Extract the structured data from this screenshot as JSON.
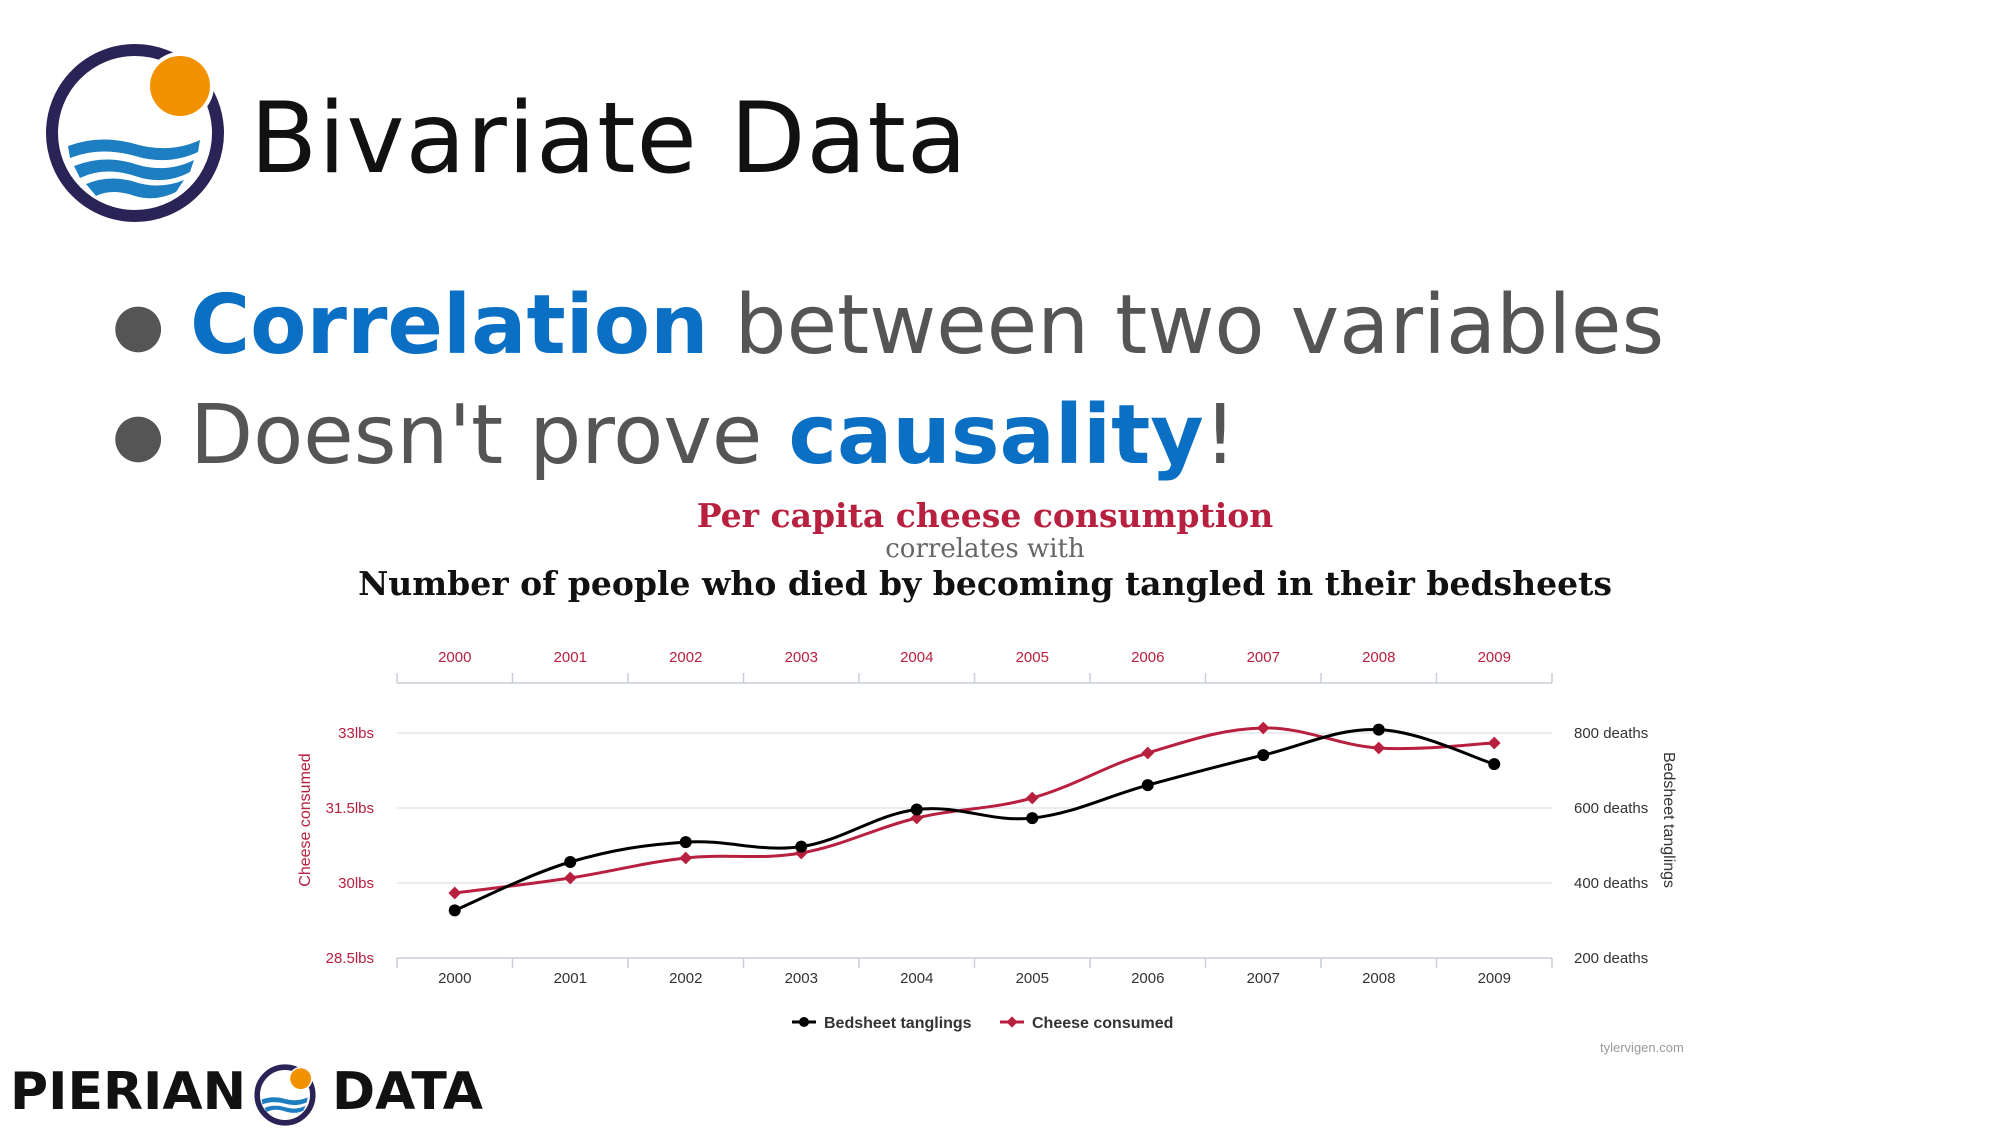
{
  "slide": {
    "title": "Bivariate Data",
    "bullets": [
      {
        "highlight": "Correlation",
        "rest": " between two variables"
      },
      {
        "prefix": "Doesn't prove ",
        "highlight": "causality",
        "suffix": "!"
      }
    ]
  },
  "footer": {
    "brand_left": "PIERIAN",
    "brand_right": "DATA"
  },
  "chart_data": {
    "type": "line",
    "title": "Per capita cheese consumption",
    "subtitle": "correlates with",
    "title2": "Number of people who died by becoming tangled in their bedsheets",
    "x": [
      2000,
      2001,
      2002,
      2003,
      2004,
      2005,
      2006,
      2007,
      2008,
      2009
    ],
    "top_tick_labels": [
      "2000",
      "2001",
      "2002",
      "2003",
      "2004",
      "2005",
      "2006",
      "2007",
      "2008",
      "2009"
    ],
    "bottom_tick_labels": [
      "2000",
      "2001",
      "2002",
      "2003",
      "2004",
      "2005",
      "2006",
      "2007",
      "2008",
      "2009"
    ],
    "y_left": {
      "label": "Cheese consumed",
      "ylim": [
        28.5,
        33
      ],
      "ticks": [
        28.5,
        30,
        31.5,
        33
      ],
      "tick_labels": [
        "28.5lbs",
        "30lbs",
        "31.5lbs",
        "33lbs"
      ]
    },
    "y_right": {
      "label": "Bedsheet tanglings",
      "ylim": [
        200,
        800
      ],
      "ticks": [
        200,
        400,
        600,
        800
      ],
      "tick_labels": [
        "200 deaths",
        "400 deaths",
        "600 deaths",
        "800 deaths"
      ]
    },
    "series": [
      {
        "name": "Bedsheet tanglings",
        "axis": "right",
        "color": "#000000",
        "marker": "circle",
        "values": [
          327,
          456,
          509,
          497,
          596,
          573,
          661,
          741,
          809,
          717
        ]
      },
      {
        "name": "Cheese consumed",
        "axis": "left",
        "color": "#b8203f",
        "marker": "diamond",
        "values": [
          29.8,
          30.1,
          30.5,
          30.6,
          31.3,
          31.7,
          32.6,
          33.1,
          32.7,
          32.8
        ]
      }
    ],
    "legend": "bottom-center",
    "grid": true,
    "source": "tylervigen.com"
  },
  "colors": {
    "accent": "#0b6fc4",
    "chart_red": "#b8203f",
    "logo_navy": "#2a2456",
    "logo_orange": "#f39200",
    "logo_blue": "#1d7fc2"
  }
}
